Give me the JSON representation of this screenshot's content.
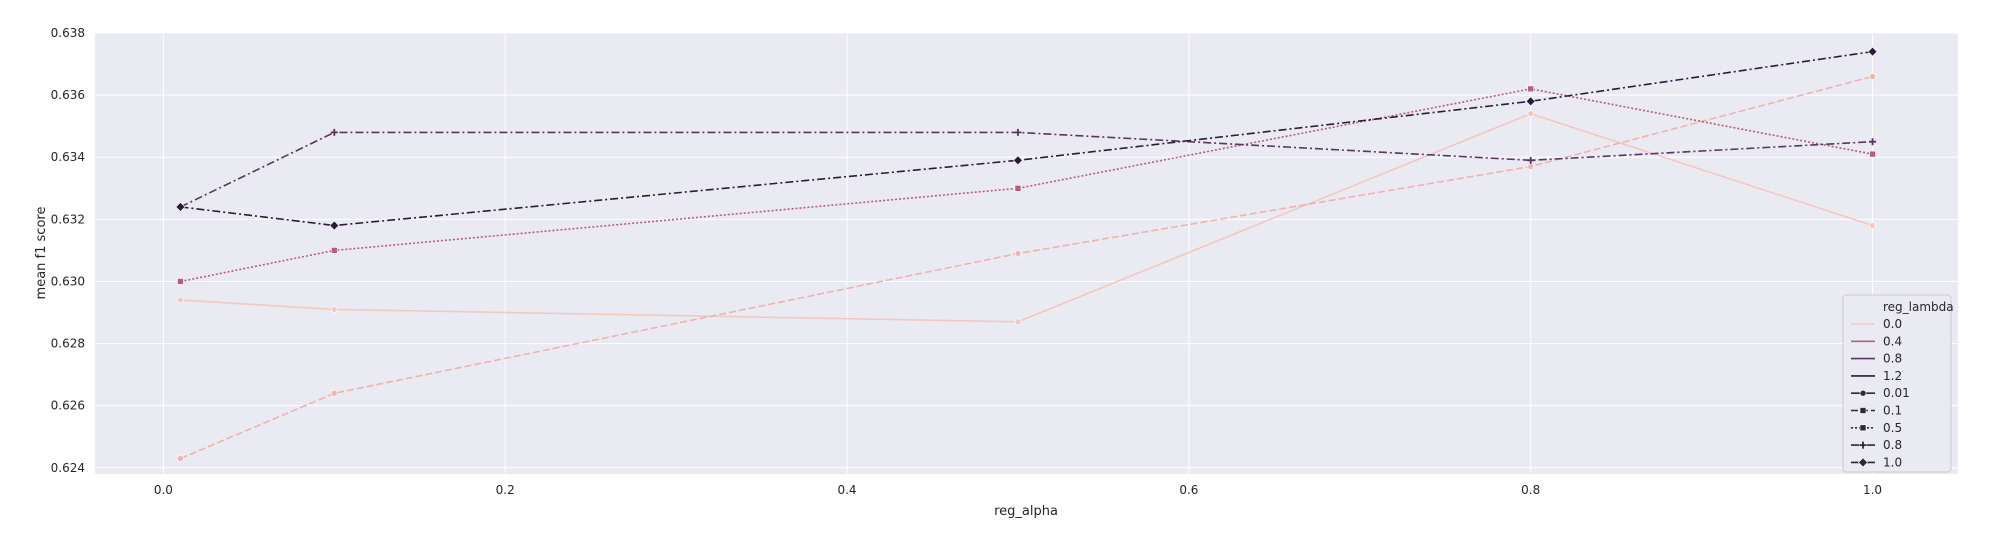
{
  "chart_data": {
    "type": "line",
    "xlabel": "reg_alpha",
    "ylabel": "mean f1 score",
    "xlim": [
      -0.04,
      1.05
    ],
    "ylim": [
      0.6238,
      0.638
    ],
    "x_ticks": [
      "0.0",
      "0.2",
      "0.4",
      "0.6",
      "0.8",
      "1.0"
    ],
    "y_ticks": [
      "0.624",
      "0.626",
      "0.628",
      "0.630",
      "0.632",
      "0.634",
      "0.636",
      "0.638"
    ],
    "grid": true,
    "legend_position": "lower-right",
    "legend": {
      "hue_title": "reg_lambda",
      "hue_entries": [
        {
          "label": "0.0",
          "color": "#f2c9c1"
        },
        {
          "label": "0.4",
          "color": "#b5607b"
        },
        {
          "label": "0.8",
          "color": "#5a3560"
        },
        {
          "label": "1.2",
          "color": "#2b1a38"
        }
      ],
      "style_entries": [
        {
          "label": "0.01",
          "marker": "circle",
          "dash": "solid"
        },
        {
          "label": "0.1",
          "marker": "square",
          "dash": "dashed"
        },
        {
          "label": "0.5",
          "marker": "square",
          "dash": "dotted"
        },
        {
          "label": "0.8",
          "marker": "plus",
          "dash": "dashdot"
        },
        {
          "label": "1.0",
          "marker": "diamond",
          "dash": "dashdot"
        }
      ]
    },
    "x": [
      0.01,
      0.1,
      0.5,
      0.8,
      1.0
    ],
    "series": [
      {
        "color": "#f2c9c1",
        "dash": "solid",
        "marker": "circle",
        "values": [
          0.6294,
          0.6291,
          0.6287,
          0.6354,
          0.6318
        ]
      },
      {
        "color": "#eeb4ae",
        "dash": "dashed",
        "marker": "circle",
        "values": [
          0.6243,
          0.6264,
          0.6309,
          0.6337,
          0.6366
        ]
      },
      {
        "color": "#b5607b",
        "dash": "dotted",
        "marker": "square",
        "values": [
          0.63,
          0.631,
          0.633,
          0.6362,
          0.6341
        ]
      },
      {
        "color": "#5a3560",
        "dash": "dashdot",
        "marker": "plus",
        "values": [
          0.6324,
          0.6348,
          0.6348,
          0.6339,
          0.6345
        ]
      },
      {
        "color": "#2b1a38",
        "dash": "dashdot",
        "marker": "diamond",
        "values": [
          0.6324,
          0.6318,
          0.6339,
          0.6358,
          0.6374
        ]
      }
    ]
  }
}
